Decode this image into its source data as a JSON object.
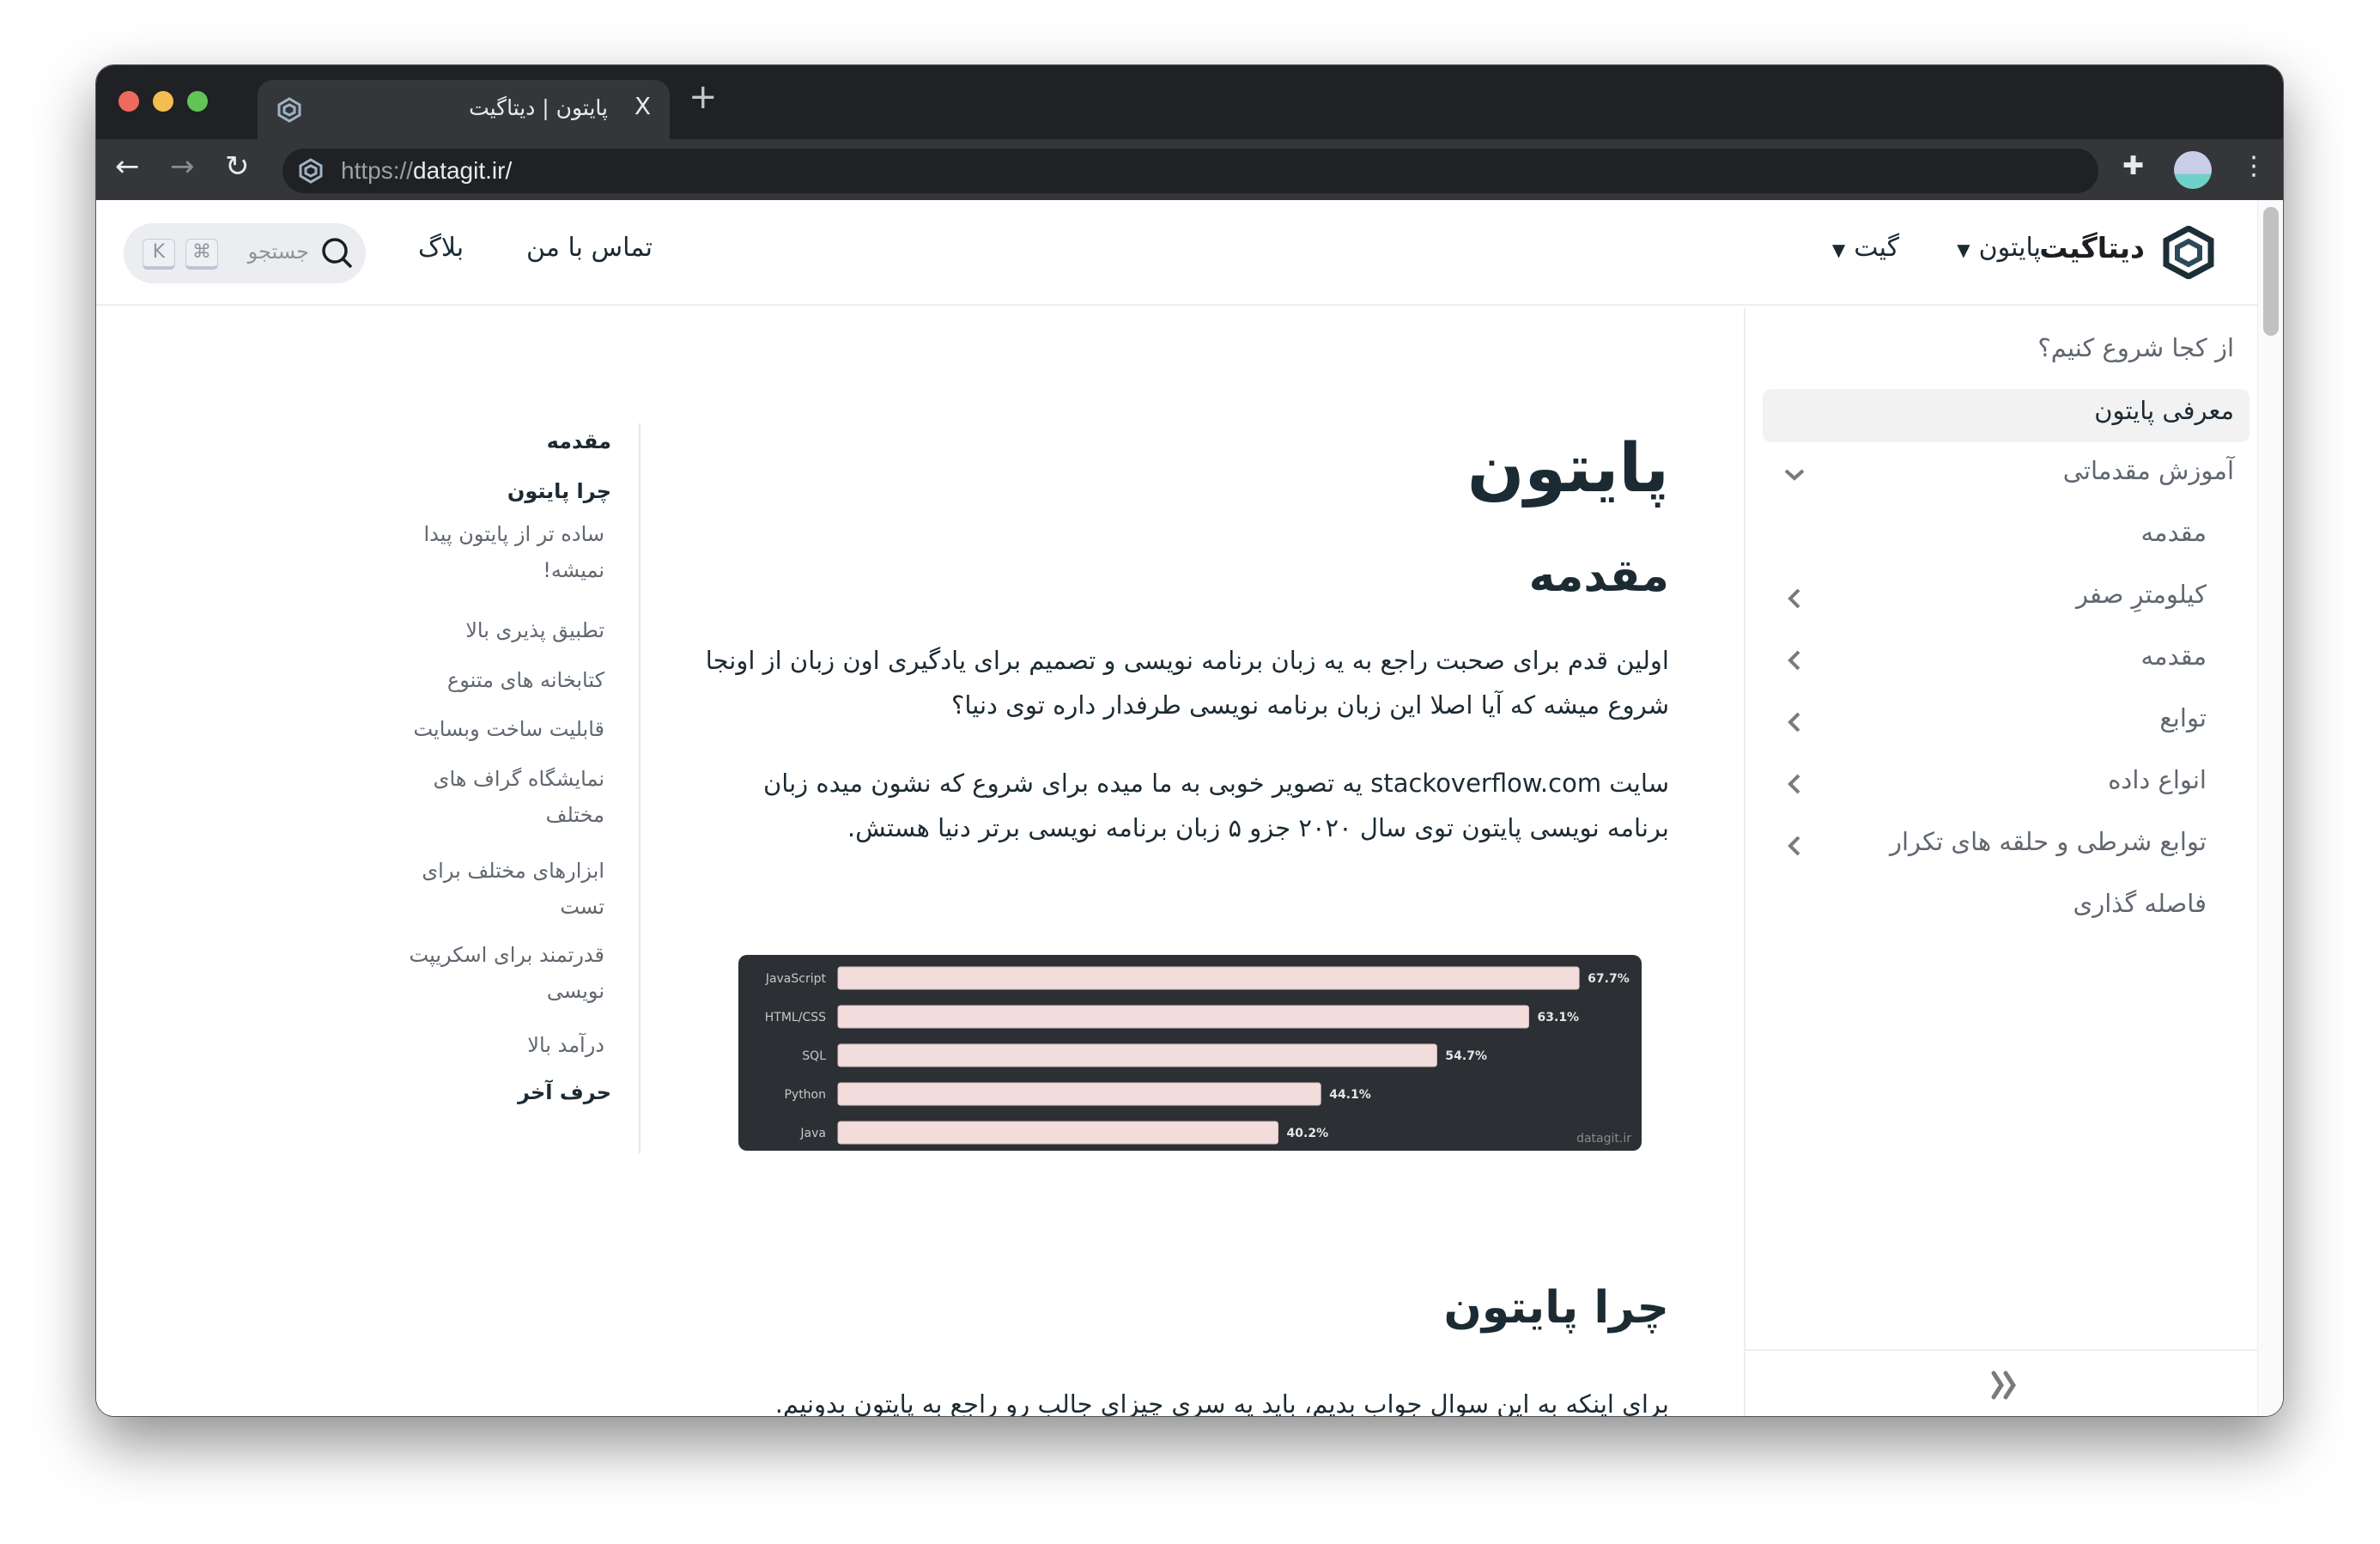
{
  "browser": {
    "tab_title": "پایتون | دیتاگیت",
    "close_tab": "X",
    "new_tab": "+",
    "url_scheme": "https://",
    "url_host": "datagit.ir/",
    "traffic_lights": {
      "close": "#ee6a5f",
      "minimize": "#f5bd4f",
      "maximize": "#61c454"
    }
  },
  "header": {
    "brand": "دیتاگیت",
    "nav": [
      {
        "label": "پایتون",
        "icon": "caret-down-icon"
      },
      {
        "label": "گیت",
        "icon": "caret-down-icon"
      },
      {
        "label": "تماس با من"
      },
      {
        "label": "بلاگ"
      }
    ],
    "search_placeholder": "جستجو",
    "shortcut_keys": [
      "⌘",
      "K"
    ]
  },
  "sidebar": {
    "items": [
      {
        "label": "از کجا شروع کنیم؟"
      },
      {
        "label": "معرفی پایتون",
        "active": true
      },
      {
        "label": "آموزش مقدماتی",
        "icon": "chevron-down-icon"
      },
      {
        "label": "مقدمه"
      },
      {
        "label": "کیلومترِ صفر",
        "icon": "chevron-left-icon"
      },
      {
        "label": "مقدمه",
        "icon": "chevron-left-icon"
      },
      {
        "label": "توابع",
        "icon": "chevron-left-icon"
      },
      {
        "label": "انواع داده",
        "icon": "chevron-left-icon"
      },
      {
        "label": "توابع شرطی و حلقه های تکرار",
        "icon": "chevron-left-icon"
      },
      {
        "label": "فاصله گذاری"
      }
    ],
    "collapse_icon": "double-chevron-icon"
  },
  "main": {
    "title": "پایتون",
    "section1": "مقدمه",
    "para1": "اولین قدم برای صحبت راجع به یه زبان برنامه نویسی و تصمیم برای یادگیری اون زبان از اونجا شروع میشه که آیا اصلا این زبان برنامه نویسی طرفدار داره توی دنیا؟",
    "para2": "سایت stackoverflow.com یه تصویر خوبی به ما میده برای شروع که نشون میده زبان برنامه نویسی پایتون توی سال ۲۰۲۰ جزو ۵ زبان برنامه نویسی برتر دنیا هستش.",
    "section2": "چرا پایتون",
    "para3": "برای اینکه به این سوال جواب بدیم، باید یه سری چیزای جالب رو راجع به پایتون بدونیم."
  },
  "chart_data": {
    "type": "bar",
    "orientation": "horizontal",
    "categories": [
      "JavaScript",
      "HTML/CSS",
      "SQL",
      "Python",
      "Java"
    ],
    "values": [
      67.7,
      63.1,
      54.7,
      44.1,
      40.2
    ],
    "data_labels": [
      "67.7%",
      "63.1%",
      "54.7%",
      "44.1%",
      "40.2%"
    ],
    "watermark": "datagit.ir",
    "bar_color": "#f2dcdc",
    "background": "#2c2f33",
    "grid": false
  },
  "toc": {
    "items": [
      {
        "label": "مقدمه",
        "bold": true
      },
      {
        "label": "چرا پایتون",
        "bold": true
      },
      {
        "label": "ساده تر از پایتون پیدا نمیشه!"
      },
      {
        "label": "تطبیق پذیری بالا"
      },
      {
        "label": "کتابخانه های متنوع"
      },
      {
        "label": "قابلیت ساخت وبسایت"
      },
      {
        "label": "نمایشگاه گراف های مختلف"
      },
      {
        "label": "ابزارهای مختلف برای تست"
      },
      {
        "label": "قدرتمند برای اسکریپت نویسی"
      },
      {
        "label": "درآمد بالا"
      },
      {
        "label": "حرف آخر",
        "bold": true
      }
    ]
  }
}
